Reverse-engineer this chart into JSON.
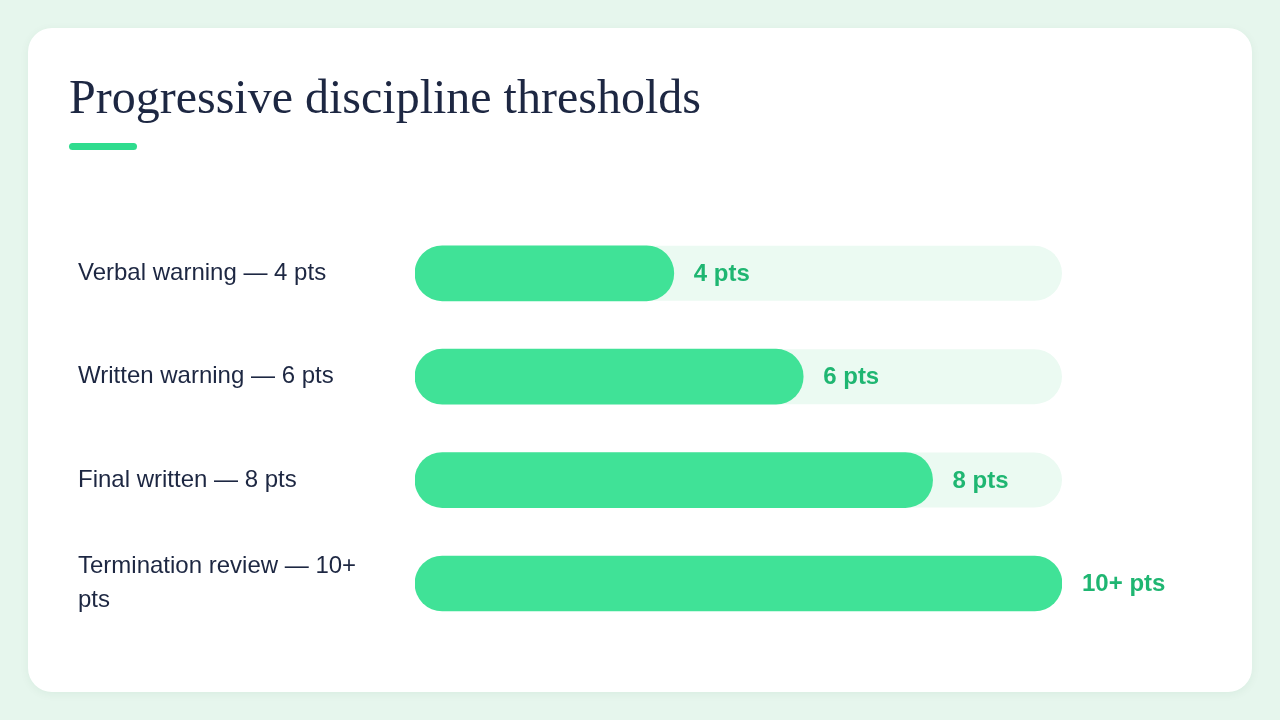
{
  "chart_data": {
    "type": "bar",
    "orientation": "horizontal",
    "title": "Progressive discipline thresholds",
    "categories": [
      "Verbal warning — 4 pts",
      "Written warning — 6 pts",
      "Final written — 8 pts",
      "Termination review — 10+ pts"
    ],
    "values": [
      4,
      6,
      8,
      10
    ],
    "value_labels": [
      "4 pts",
      "6 pts",
      "8 pts",
      "10+ pts"
    ],
    "color": "#40e297",
    "xlim": [
      0,
      10
    ],
    "tick_labels": "y",
    "grid": false,
    "legend": false
  }
}
